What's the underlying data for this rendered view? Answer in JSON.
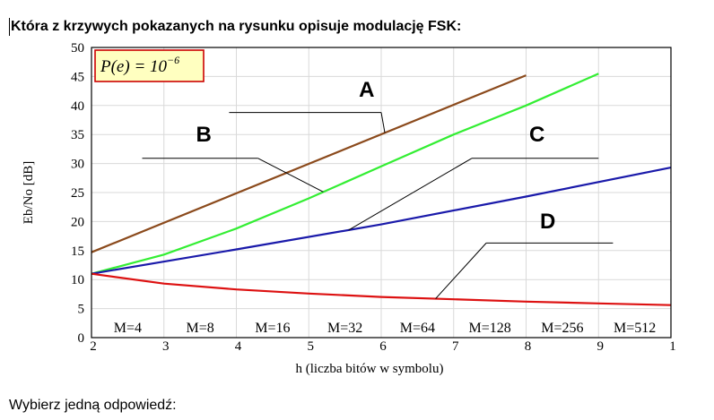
{
  "question": "Która z krzywych pokazanych na rysunku opisuje modulację FSK:",
  "prompt": "Wybierz jedną odpowiedź:",
  "chart_data": {
    "type": "line",
    "xlabel": "h (liczba bitów w symbolu)",
    "ylabel": "Eb/No [dB]",
    "xlim": [
      2,
      10
    ],
    "ylim": [
      0,
      50
    ],
    "x_tick_labels": [
      "2",
      "3",
      "4",
      "5",
      "6",
      "7",
      "8",
      "9",
      "1"
    ],
    "y_ticks": [
      0,
      5,
      10,
      15,
      20,
      25,
      30,
      35,
      40,
      45,
      50
    ],
    "grid": true,
    "annotation": {
      "prefix": "P(e) = 10",
      "exponent": "−6"
    },
    "m_labels": [
      "M=4",
      "M=8",
      "M=16",
      "M=32",
      "M=64",
      "M=128",
      "M=256",
      "M=512"
    ],
    "series": [
      {
        "name": "A",
        "color": "#8b4a1c",
        "x": [
          2,
          8
        ],
        "y": [
          14.7,
          45.2
        ]
      },
      {
        "name": "B",
        "color": "#33ee33",
        "x": [
          2,
          3,
          4,
          5,
          6,
          7,
          8,
          9
        ],
        "y": [
          11.0,
          14.3,
          18.8,
          24.0,
          29.5,
          35.0,
          40.0,
          45.5
        ]
      },
      {
        "name": "C",
        "color": "#1a1aaa",
        "x": [
          2,
          4,
          6,
          8,
          10
        ],
        "y": [
          11.0,
          15.2,
          19.5,
          24.3,
          29.3
        ]
      },
      {
        "name": "D",
        "color": "#dd1111",
        "x": [
          2,
          3,
          4,
          5,
          6,
          7,
          8,
          9,
          10
        ],
        "y": [
          11.0,
          9.3,
          8.3,
          7.6,
          7.0,
          6.6,
          6.2,
          5.9,
          5.6
        ]
      }
    ],
    "callouts": [
      {
        "label": "A",
        "series": "A",
        "at_x": 6.05,
        "tail": [
          3.9,
          38.8
        ],
        "text_pos": [
          5.8,
          41.5
        ],
        "bar": [
          3.9,
          6.0
        ]
      },
      {
        "label": "B",
        "series": "B",
        "at_x": 5.2,
        "tail": [
          2.7,
          30.9
        ],
        "text_pos": [
          3.55,
          33.8
        ],
        "bar": [
          2.7,
          4.3
        ]
      },
      {
        "label": "C",
        "series": "C",
        "at_x": 5.55,
        "tail": [
          7.25,
          30.9
        ],
        "text_pos": [
          8.15,
          33.8
        ],
        "bar": [
          7.25,
          9.0
        ]
      },
      {
        "label": "D",
        "series": "D",
        "at_x": 6.75,
        "tail": [
          7.45,
          16.3
        ],
        "text_pos": [
          8.3,
          18.8
        ],
        "bar": [
          7.45,
          9.2
        ]
      }
    ]
  }
}
